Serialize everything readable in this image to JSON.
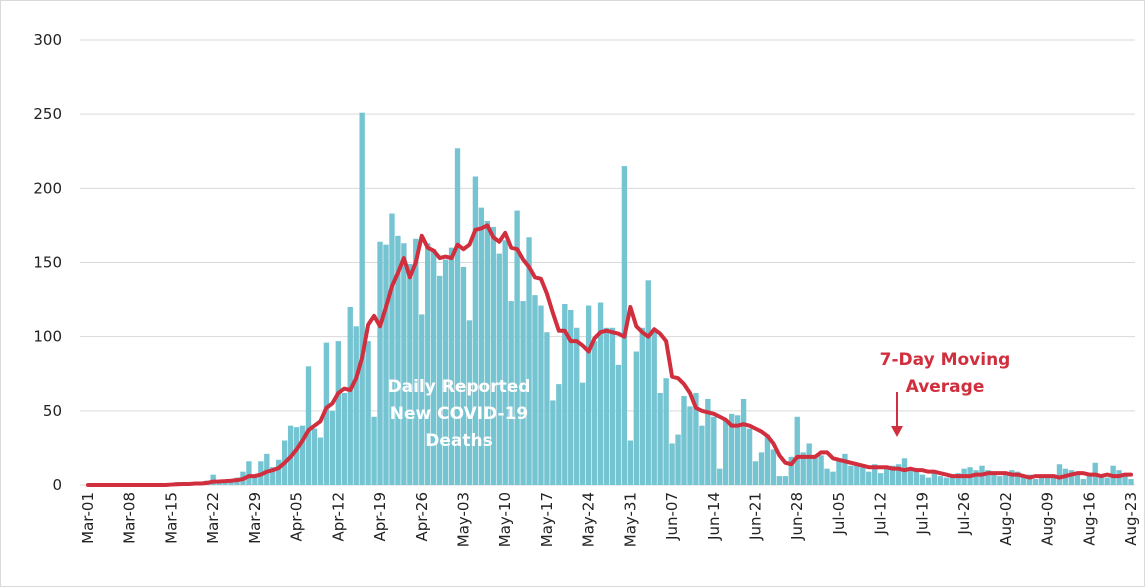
{
  "chart_data": {
    "type": "bar",
    "categories": [
      "Mar-01",
      null,
      null,
      null,
      null,
      null,
      null,
      "Mar-08",
      null,
      null,
      null,
      null,
      null,
      null,
      "Mar-15",
      null,
      null,
      null,
      null,
      null,
      null,
      "Mar-22",
      null,
      null,
      null,
      null,
      null,
      null,
      "Mar-29",
      null,
      null,
      null,
      null,
      null,
      null,
      "Apr-05",
      null,
      null,
      null,
      null,
      null,
      null,
      "Apr-12",
      null,
      null,
      null,
      null,
      null,
      null,
      "Apr-19",
      null,
      null,
      null,
      null,
      null,
      null,
      "Apr-26",
      null,
      null,
      null,
      null,
      null,
      null,
      "May-03",
      null,
      null,
      null,
      null,
      null,
      null,
      "May-10",
      null,
      null,
      null,
      null,
      null,
      null,
      "May-17",
      null,
      null,
      null,
      null,
      null,
      null,
      "May-24",
      null,
      null,
      null,
      null,
      null,
      null,
      "May-31",
      null,
      null,
      null,
      null,
      null,
      null,
      "Jun-07",
      null,
      null,
      null,
      null,
      null,
      null,
      "Jun-14",
      null,
      null,
      null,
      null,
      null,
      null,
      "Jun-21",
      null,
      null,
      null,
      null,
      null,
      null,
      "Jun-28",
      null,
      null,
      null,
      null,
      null,
      null,
      "Jul-05",
      null,
      null,
      null,
      null,
      null,
      null,
      "Jul-12",
      null,
      null,
      null,
      null,
      null,
      null,
      "Jul-19",
      null,
      null,
      null,
      null,
      null,
      null,
      "Jul-26",
      null,
      null,
      null,
      null,
      null,
      null,
      "Aug-02",
      null,
      null,
      null,
      null,
      null,
      null,
      "Aug-09",
      null,
      null,
      null,
      null,
      null,
      null,
      "Aug-16",
      null,
      null,
      null,
      null,
      null,
      null,
      "Aug-23"
    ],
    "series": [
      {
        "type": "bar",
        "color": "#75c4d2",
        "values": [
          0,
          0,
          0,
          0,
          0,
          0,
          0,
          0,
          0,
          0,
          0,
          0,
          0,
          0,
          1,
          2,
          1,
          0,
          2,
          1,
          3,
          7,
          3,
          2,
          4,
          5,
          9,
          16,
          6,
          16,
          21,
          12,
          17,
          30,
          40,
          39,
          40,
          80,
          38,
          32,
          96,
          50,
          97,
          62,
          120,
          107,
          251,
          97,
          46,
          164,
          162,
          183,
          168,
          163,
          149,
          166,
          115,
          163,
          159,
          141,
          152,
          160,
          227,
          147,
          111,
          208,
          187,
          178,
          174,
          156,
          165,
          124,
          185,
          124,
          167,
          128,
          121,
          103,
          57,
          68,
          122,
          118,
          106,
          69,
          121,
          97,
          123,
          106,
          106,
          81,
          215,
          30,
          90,
          106,
          138,
          104,
          62,
          72,
          28,
          34,
          60,
          53,
          62,
          40,
          58,
          46,
          11,
          44,
          48,
          47,
          58,
          38,
          16,
          22,
          34,
          24,
          6,
          6,
          19,
          46,
          22,
          28,
          20,
          20,
          11,
          9,
          17,
          21,
          13,
          14,
          14,
          9,
          14,
          8,
          13,
          13,
          14,
          18,
          10,
          9,
          7,
          5,
          9,
          6,
          5,
          6,
          8,
          11,
          12,
          10,
          13,
          10,
          8,
          6,
          8,
          10,
          9,
          5,
          7,
          4,
          6,
          6,
          5,
          14,
          11,
          10,
          8,
          4,
          7,
          15,
          7,
          5,
          13,
          10,
          6,
          4
        ]
      },
      {
        "type": "line",
        "color": "#d12e3e",
        "values": [
          0,
          0,
          0,
          0,
          0,
          0,
          0,
          0,
          0,
          0,
          0,
          0,
          0,
          0,
          0.3,
          0.5,
          0.7,
          0.7,
          1,
          1,
          1.4,
          2.3,
          2.4,
          2.6,
          2.9,
          3.3,
          4,
          6,
          6,
          7,
          9,
          10,
          11.5,
          15,
          19,
          24,
          30,
          37,
          40,
          43,
          52,
          55,
          62,
          65,
          64,
          72,
          86,
          108,
          114,
          107,
          120,
          134,
          143,
          153,
          140,
          150,
          168,
          160,
          158,
          153,
          154,
          153,
          162,
          159,
          162,
          172,
          173,
          175,
          167,
          164,
          170,
          160,
          159,
          152,
          147,
          140,
          139,
          129,
          116,
          104,
          104,
          97,
          97,
          94,
          90,
          99,
          103,
          104,
          103,
          102,
          100,
          120,
          107,
          103,
          100,
          105,
          102,
          97,
          73,
          72,
          68,
          62,
          52,
          50,
          49,
          48,
          46,
          44,
          40,
          40,
          41,
          40,
          38,
          36,
          33,
          28,
          20,
          15,
          14,
          19,
          19,
          19,
          19,
          22,
          22,
          18,
          17,
          16,
          15,
          14,
          13,
          12,
          12,
          12,
          12,
          11,
          11,
          10,
          11,
          10,
          10,
          9,
          9,
          8,
          7,
          6,
          6,
          6,
          6,
          7,
          7,
          8,
          8,
          8,
          8,
          7,
          7,
          6,
          5,
          6,
          6,
          6,
          6,
          5,
          6,
          7,
          8,
          8,
          7,
          7,
          6,
          7,
          6,
          6,
          7,
          7
        ]
      }
    ],
    "annotations": [
      {
        "lines": [
          "Daily Reported",
          "New COVID-19",
          "Deaths"
        ],
        "color": "#ffffff"
      },
      {
        "lines": [
          "7-Day Moving",
          "Average"
        ],
        "color": "#d12e3e"
      }
    ],
    "ylim": [
      0,
      300
    ],
    "yticks": [
      0,
      50,
      100,
      150,
      200,
      250,
      300
    ],
    "grid": true
  }
}
